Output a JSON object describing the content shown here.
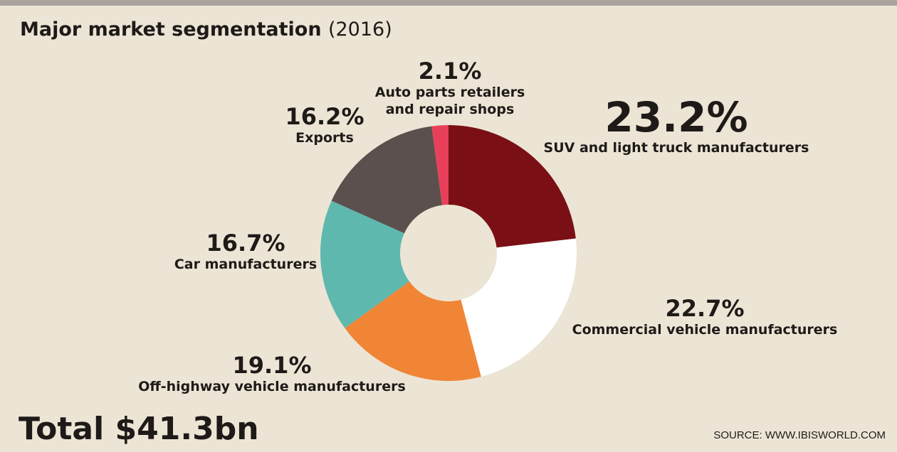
{
  "chart_data": {
    "type": "donut",
    "title": "Major market segmentation",
    "subtitle": "(2016)",
    "categories": [
      "SUV and light truck manufacturers",
      "Commercial vehicle manufacturers",
      "Off-highway vehicle manufacturers",
      "Car manufacturers",
      "Exports",
      "Auto parts retailers and repair shops"
    ],
    "values": [
      23.2,
      22.7,
      19.1,
      16.7,
      16.2,
      2.1
    ],
    "value_labels": [
      "23.2%",
      "22.7%",
      "19.1%",
      "16.7%",
      "16.2%",
      "2.1%"
    ],
    "colors": [
      "#7a1015",
      "#ffffff",
      "#f08535",
      "#5fb8ae",
      "#5b504d",
      "#e8405a"
    ],
    "annotations": [
      "Total $41.3bn",
      "SOURCE: WWW.IBISWORLD.COM"
    ]
  }
}
